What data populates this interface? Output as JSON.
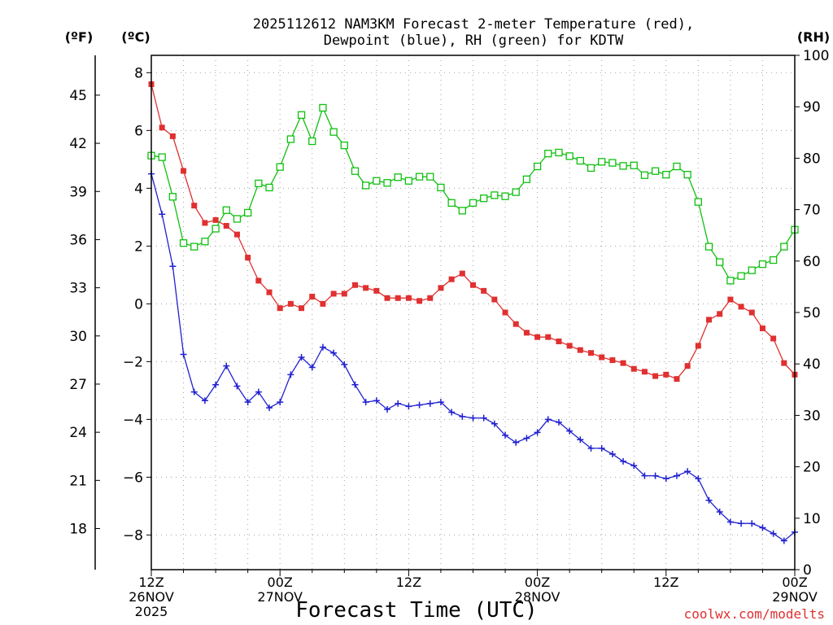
{
  "colors": {
    "temperature": "#e03030",
    "dewpoint": "#2020d0",
    "rh": "#10c010",
    "credit": "#e03030",
    "grid": "#a0a0a0"
  },
  "chart_data": {
    "type": "line",
    "title": "2025112612 NAM3KM Forecast 2-meter Temperature (red),",
    "title_line2": "Dewpoint (blue), RH (green) for KDTW",
    "xlabel": "Forecast Time (UTC)",
    "credit": "coolwx.com/modelts",
    "units": {
      "fahrenheit": "(ºF)",
      "celsius": "(ºC)",
      "rh": "(RH)"
    },
    "x_range_hours": [
      0,
      60
    ],
    "x_ticks": [
      {
        "hour": 0,
        "lines": [
          "12Z",
          "26NOV",
          "2025"
        ]
      },
      {
        "hour": 12,
        "lines": [
          "00Z",
          "27NOV"
        ]
      },
      {
        "hour": 24,
        "lines": [
          "12Z"
        ]
      },
      {
        "hour": 36,
        "lines": [
          "00Z",
          "28NOV"
        ]
      },
      {
        "hour": 48,
        "lines": [
          "12Z"
        ]
      },
      {
        "hour": 60,
        "lines": [
          "00Z",
          "29NOV"
        ]
      }
    ],
    "y_celsius": {
      "range": [
        -9.2,
        8.6
      ],
      "ticks": [
        "8",
        "6",
        "4",
        "2",
        "0",
        "−2",
        "−4",
        "−6",
        "−8"
      ],
      "tick_values": [
        8,
        6,
        4,
        2,
        0,
        -2,
        -4,
        -6,
        -8
      ]
    },
    "y_fahrenheit": {
      "ticks": [
        "45",
        "42",
        "39",
        "36",
        "33",
        "30",
        "27",
        "24",
        "21",
        "18"
      ],
      "tick_values": [
        45,
        42,
        39,
        36,
        33,
        30,
        27,
        24,
        21,
        18
      ]
    },
    "y_rh": {
      "range": [
        0,
        100
      ],
      "ticks": [
        "100",
        "90",
        "80",
        "70",
        "60",
        "50",
        "40",
        "30",
        "20",
        "10",
        "0"
      ],
      "tick_values": [
        100,
        90,
        80,
        70,
        60,
        50,
        40,
        30,
        20,
        10,
        0
      ]
    },
    "series": [
      {
        "name": "2-meter Temperature (°C)",
        "axis": "celsius",
        "marker": "filled-square",
        "hours": [
          0,
          1,
          2,
          3,
          4,
          5,
          6,
          7,
          8,
          9,
          10,
          11,
          12,
          13,
          14,
          15,
          16,
          17,
          18,
          19,
          20,
          21,
          22,
          23,
          24,
          25,
          26,
          27,
          28,
          29,
          30,
          31,
          32,
          33,
          34,
          35,
          36,
          37,
          38,
          39,
          40,
          41,
          42,
          43,
          44,
          45,
          46,
          47,
          48,
          49,
          50,
          51,
          52,
          53,
          54,
          55,
          56,
          57,
          58,
          59,
          60
        ],
        "values": [
          7.6,
          6.1,
          5.8,
          4.6,
          3.4,
          2.8,
          2.9,
          2.7,
          2.4,
          1.6,
          0.8,
          0.4,
          -0.15,
          0.0,
          -0.15,
          0.25,
          0.0,
          0.35,
          0.35,
          0.65,
          0.55,
          0.45,
          0.2,
          0.2,
          0.2,
          0.1,
          0.2,
          0.55,
          0.85,
          1.05,
          0.65,
          0.45,
          0.15,
          -0.3,
          -0.7,
          -1.0,
          -1.15,
          -1.15,
          -1.3,
          -1.45,
          -1.6,
          -1.7,
          -1.85,
          -1.95,
          -2.05,
          -2.25,
          -2.35,
          -2.5,
          -2.45,
          -2.6,
          -2.15,
          -1.45,
          -0.55,
          -0.35,
          0.15,
          -0.1,
          -0.3,
          -0.85,
          -1.2,
          -2.05,
          -2.45
        ]
      },
      {
        "name": "Dewpoint (°C)",
        "axis": "celsius",
        "marker": "plus",
        "hours": [
          0,
          1,
          2,
          3,
          4,
          5,
          6,
          7,
          8,
          9,
          10,
          11,
          12,
          13,
          14,
          15,
          16,
          17,
          18,
          19,
          20,
          21,
          22,
          23,
          24,
          25,
          26,
          27,
          28,
          29,
          30,
          31,
          32,
          33,
          34,
          35,
          36,
          37,
          38,
          39,
          40,
          41,
          42,
          43,
          44,
          45,
          46,
          47,
          48,
          49,
          50,
          51,
          52,
          53,
          54,
          55,
          56,
          57,
          58,
          59,
          60
        ],
        "values": [
          4.5,
          3.1,
          1.3,
          -1.75,
          -3.05,
          -3.35,
          -2.8,
          -2.15,
          -2.85,
          -3.4,
          -3.05,
          -3.6,
          -3.4,
          -2.45,
          -1.85,
          -2.2,
          -1.5,
          -1.7,
          -2.1,
          -2.8,
          -3.4,
          -3.35,
          -3.65,
          -3.45,
          -3.55,
          -3.5,
          -3.45,
          -3.4,
          -3.75,
          -3.9,
          -3.95,
          -3.95,
          -4.15,
          -4.55,
          -4.8,
          -4.65,
          -4.45,
          -4.0,
          -4.1,
          -4.4,
          -4.7,
          -5.0,
          -5.0,
          -5.2,
          -5.45,
          -5.6,
          -5.95,
          -5.95,
          -6.05,
          -5.95,
          -5.8,
          -6.05,
          -6.8,
          -7.2,
          -7.55,
          -7.6,
          -7.6,
          -7.75,
          -7.95,
          -8.2,
          -7.9
        ]
      },
      {
        "name": "RH (%)",
        "axis": "rh",
        "marker": "open-square",
        "hours": [
          0,
          1,
          2,
          3,
          4,
          5,
          6,
          7,
          8,
          9,
          10,
          11,
          12,
          13,
          14,
          15,
          16,
          17,
          18,
          19,
          20,
          21,
          22,
          23,
          24,
          25,
          26,
          27,
          28,
          29,
          30,
          31,
          32,
          33,
          34,
          35,
          36,
          37,
          38,
          39,
          40,
          41,
          42,
          43,
          44,
          45,
          46,
          47,
          48,
          49,
          50,
          51,
          52,
          53,
          54,
          55,
          56,
          57,
          58,
          59,
          60
        ],
        "values": [
          80.5,
          80.2,
          72.5,
          63.5,
          62.8,
          63.8,
          66.3,
          69.9,
          68.2,
          69.4,
          75.1,
          74.3,
          78.3,
          83.7,
          88.4,
          83.3,
          89.8,
          85.1,
          82.5,
          77.5,
          74.7,
          75.6,
          75.2,
          76.3,
          75.6,
          76.4,
          76.4,
          74.3,
          71.3,
          69.8,
          71.3,
          72.2,
          72.8,
          72.6,
          73.4,
          75.9,
          78.4,
          80.9,
          81.1,
          80.4,
          79.5,
          78.1,
          79.3,
          79.1,
          78.5,
          78.6,
          76.7,
          77.5,
          76.8,
          78.4,
          76.8,
          71.5,
          62.8,
          59.8,
          56.2,
          57.1,
          58.2,
          59.4,
          60.2,
          62.8,
          66.1
        ]
      }
    ]
  }
}
